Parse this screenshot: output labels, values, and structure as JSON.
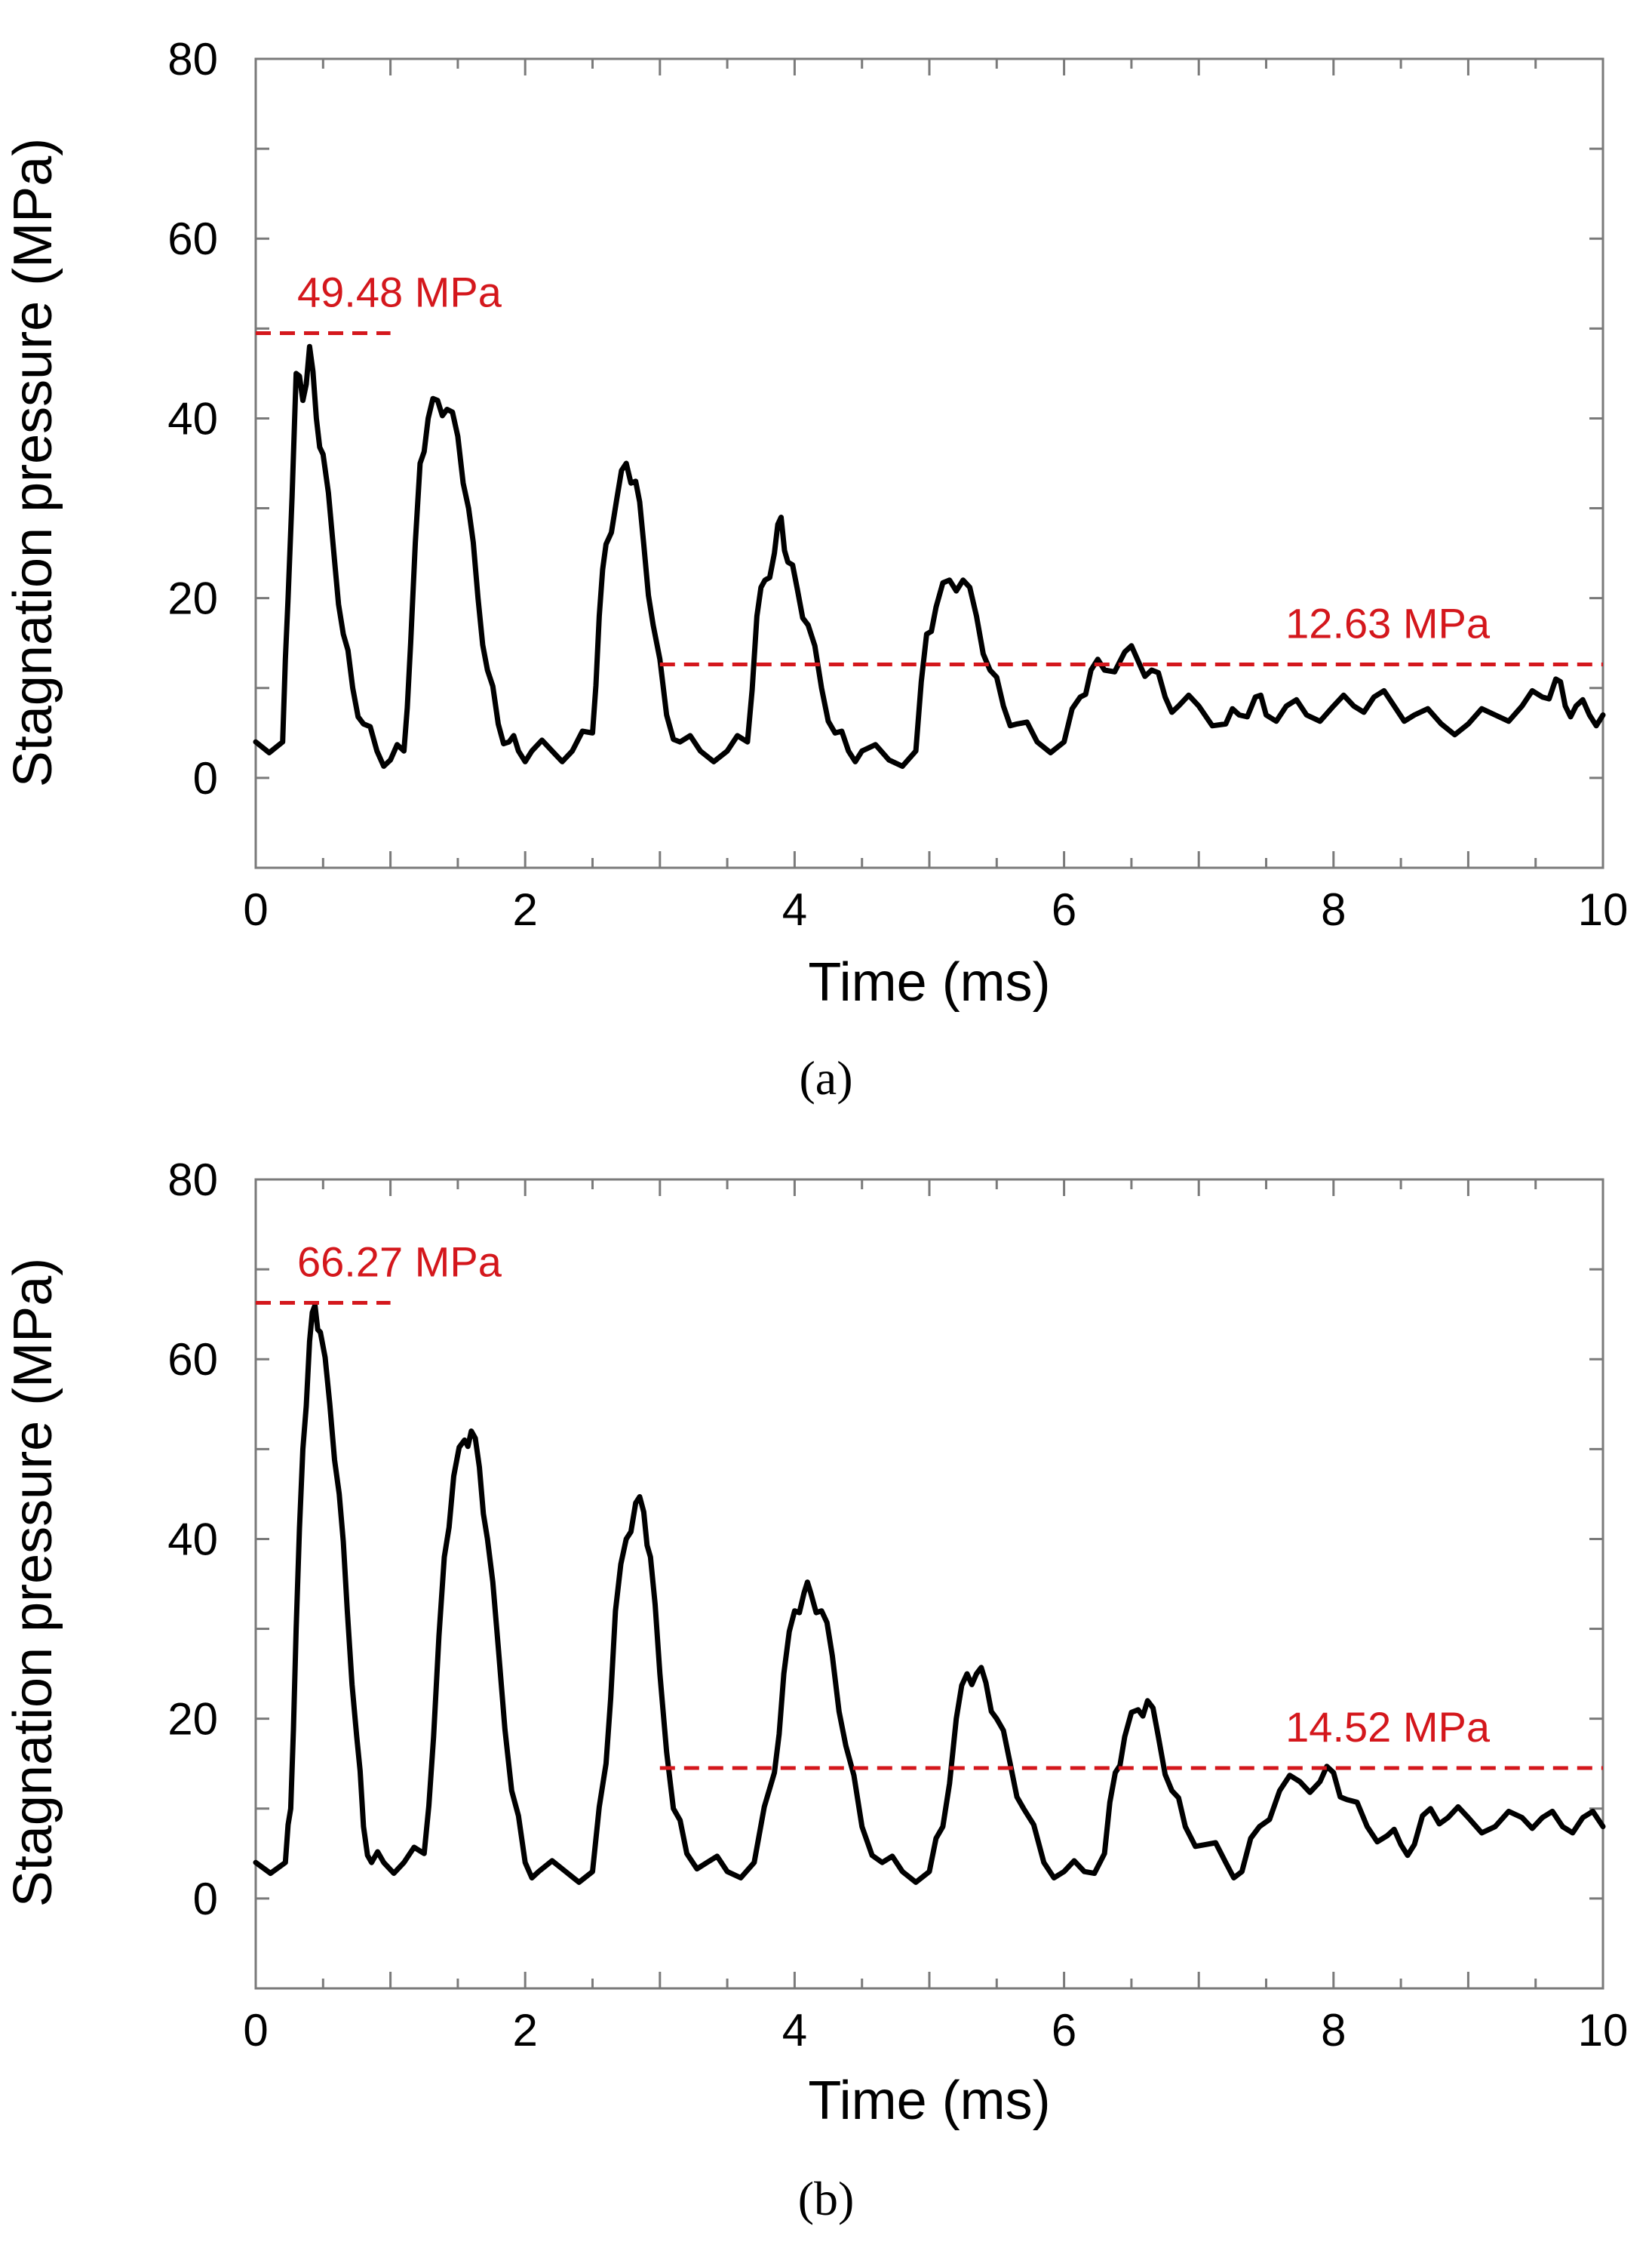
{
  "chart_data": [
    {
      "type": "line",
      "panel_label": "(a)",
      "xlabel": "Time (ms)",
      "ylabel": "Stagnation pressure (MPa)",
      "xlim": [
        0,
        10
      ],
      "ylim": [
        -10,
        80
      ],
      "xticks": [
        0,
        2,
        4,
        6,
        8,
        10
      ],
      "yticks": [
        0,
        20,
        40,
        60,
        80
      ],
      "grid": false,
      "series": [
        {
          "color": "#000000",
          "x": [
            0,
            0.2,
            0.24,
            0.3,
            0.35,
            0.4,
            0.45,
            0.5,
            0.58,
            0.65,
            0.72,
            0.8,
            0.9,
            1.0,
            1.1,
            1.15,
            1.22,
            1.28,
            1.35,
            1.42,
            1.5,
            1.58,
            1.65,
            1.72,
            1.8,
            1.88,
            1.95,
            2.05,
            2.2,
            2.35,
            2.5,
            2.55,
            2.6,
            2.68,
            2.75,
            2.82,
            2.88,
            2.95,
            3.05,
            3.15,
            3.3,
            3.5,
            3.65,
            3.72,
            3.78,
            3.85,
            3.9,
            3.95,
            4.02,
            4.1,
            4.2,
            4.3,
            4.4,
            4.5,
            4.7,
            4.9,
            4.98,
            5.05,
            5.15,
            5.25,
            5.35,
            5.45,
            5.55,
            5.65,
            5.8,
            6.0,
            6.12,
            6.2,
            6.3,
            6.45,
            6.55,
            6.65,
            6.75,
            6.85,
            7.0,
            7.2,
            7.3,
            7.42,
            7.5,
            7.65,
            7.8,
            8.0,
            8.15,
            8.3,
            8.45,
            8.6,
            8.8,
            9.0,
            9.2,
            9.4,
            9.55,
            9.65,
            9.72,
            9.8,
            9.9,
            10.0
          ],
          "y": [
            4,
            4,
            20,
            45,
            42,
            48,
            40,
            36,
            25,
            16,
            10,
            6,
            3,
            2,
            3,
            15,
            35,
            40,
            42,
            41,
            38,
            30,
            20,
            12,
            6,
            4,
            3,
            3,
            3,
            3,
            5,
            18,
            26,
            31,
            35,
            33,
            26,
            17,
            7,
            4,
            3,
            3,
            4,
            18,
            22,
            25,
            29,
            24,
            21,
            17,
            10,
            5,
            3,
            3,
            2,
            3,
            16,
            19,
            22,
            22,
            18,
            12,
            8,
            6,
            4,
            4,
            9,
            12,
            12,
            14,
            13,
            12,
            9,
            8,
            8,
            6,
            7,
            9,
            7,
            8,
            7,
            8,
            8,
            9,
            8,
            7,
            6,
            6,
            7,
            8,
            9,
            11,
            8,
            8,
            7,
            7
          ]
        }
      ],
      "annotations": [
        {
          "text": "49.48 MPa",
          "y": 49.48,
          "x_start": 0,
          "x_end": 1.0
        },
        {
          "text": "12.63 MPa",
          "y": 12.63,
          "x_start": 3.0,
          "x_end": 10.0
        }
      ]
    },
    {
      "type": "line",
      "panel_label": "(b)",
      "xlabel": "Time (ms)",
      "ylabel": "Stagnation pressure (MPa)",
      "xlim": [
        0,
        10
      ],
      "ylim": [
        -10,
        80
      ],
      "xticks": [
        0,
        2,
        4,
        6,
        8,
        10
      ],
      "yticks": [
        0,
        20,
        40,
        60,
        80
      ],
      "grid": false,
      "series": [
        {
          "color": "#000000",
          "x": [
            0,
            0.22,
            0.26,
            0.3,
            0.35,
            0.4,
            0.44,
            0.48,
            0.55,
            0.62,
            0.68,
            0.75,
            0.8,
            0.86,
            0.95,
            1.1,
            1.25,
            1.32,
            1.4,
            1.47,
            1.55,
            1.6,
            1.66,
            1.72,
            1.8,
            1.9,
            2.0,
            2.1,
            2.3,
            2.5,
            2.6,
            2.67,
            2.75,
            2.82,
            2.88,
            2.93,
            3.0,
            3.1,
            3.2,
            3.35,
            3.5,
            3.7,
            3.85,
            3.92,
            4.0,
            4.07,
            4.12,
            4.2,
            4.28,
            4.38,
            4.5,
            4.65,
            4.8,
            5.0,
            5.1,
            5.2,
            5.28,
            5.35,
            5.42,
            5.5,
            5.6,
            5.7,
            5.85,
            6.0,
            6.15,
            6.3,
            6.38,
            6.45,
            6.55,
            6.62,
            6.7,
            6.8,
            6.9,
            7.05,
            7.2,
            7.32,
            7.45,
            7.6,
            7.75,
            7.9,
            8.0,
            8.1,
            8.25,
            8.4,
            8.5,
            8.6,
            8.72,
            8.85,
            9.0,
            9.2,
            9.4,
            9.55,
            9.7,
            9.85,
            10.0
          ],
          "y": [
            4,
            4,
            10,
            30,
            50,
            62,
            66,
            63,
            55,
            45,
            32,
            18,
            8,
            4,
            4,
            4,
            5,
            18,
            38,
            47,
            51,
            52,
            48,
            40,
            28,
            12,
            4,
            3,
            3,
            3,
            15,
            32,
            40,
            44,
            43,
            38,
            25,
            10,
            5,
            4,
            3,
            4,
            14,
            25,
            32,
            34,
            34,
            32,
            27,
            17,
            8,
            4,
            3,
            3,
            8,
            20,
            25,
            25,
            24,
            20,
            15,
            10,
            4,
            3,
            3,
            5,
            14,
            18,
            21,
            22,
            18,
            12,
            8,
            6,
            4,
            3,
            8,
            12,
            13,
            13,
            14,
            11,
            8,
            7,
            6,
            6,
            10,
            9,
            9,
            8,
            9,
            9,
            8,
            9,
            8
          ]
        }
      ],
      "annotations": [
        {
          "text": "66.27 MPa",
          "y": 66.27,
          "x_start": 0,
          "x_end": 1.0
        },
        {
          "text": "14.52 MPa",
          "y": 14.52,
          "x_start": 3.0,
          "x_end": 10.0
        }
      ]
    }
  ]
}
